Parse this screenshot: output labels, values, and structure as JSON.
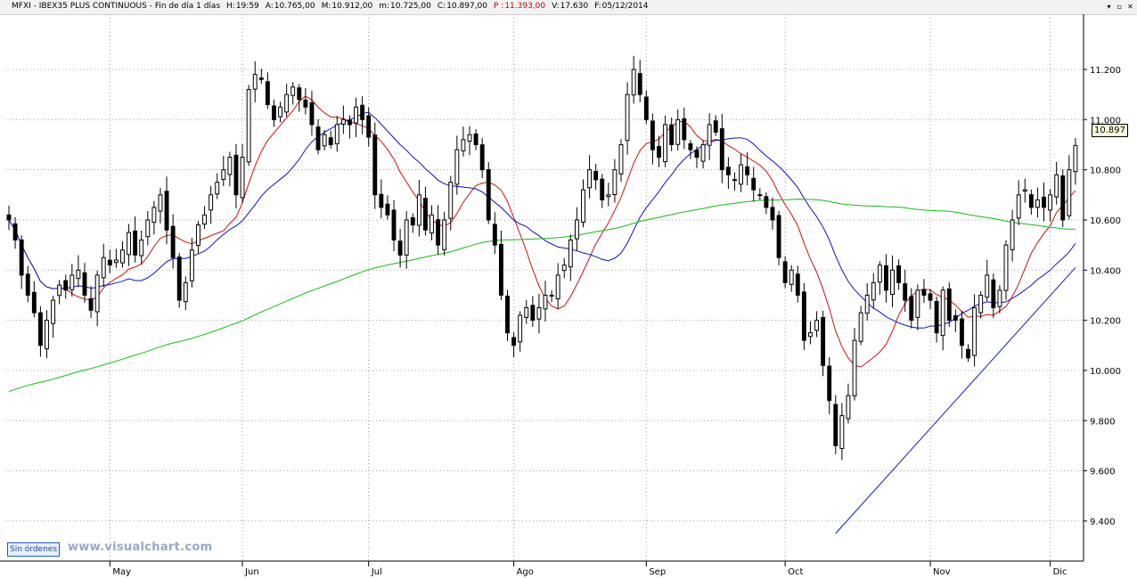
{
  "header": {
    "symbol": "MFXI",
    "name": "IBEX35 PLUS CONTINUOUS",
    "timeframe": "Fin de día 1 días",
    "fields": [
      {
        "label": "H:",
        "value": "19:59",
        "color": "#000000"
      },
      {
        "label": "A:",
        "value": "10.765,00",
        "color": "#000000"
      },
      {
        "label": "M:",
        "value": "10.912,00",
        "color": "#000000"
      },
      {
        "label": "m:",
        "value": "10.725,00",
        "color": "#000000"
      },
      {
        "label": "C:",
        "value": "10.897,00",
        "color": "#000000"
      },
      {
        "label": "P :",
        "value": "11.393,00",
        "color": "#d00000"
      },
      {
        "label": "V:",
        "value": "17.630",
        "color": "#000000"
      },
      {
        "label": "F:",
        "value": "05/12/2014",
        "color": "#000000"
      }
    ],
    "window_buttons": [
      "▾",
      "▫",
      "✕"
    ]
  },
  "status": {
    "orders_label": "Sin órdenes",
    "watermark": "www.visualchart.com",
    "last_price": "10.897"
  },
  "colors": {
    "ma_fast": "#d01010",
    "ma_mid": "#1010c0",
    "ma_slow": "#10c010",
    "trendline": "#1020b0",
    "candle": "#000000",
    "grid": "#a0a0a0"
  },
  "chart_data": {
    "type": "candlestick",
    "y_axis": {
      "ticks": [
        "9.400",
        "9.600",
        "9.800",
        "10.000",
        "10.200",
        "10.400",
        "10.600",
        "10.800",
        "11.000",
        "11.200"
      ],
      "tick_values": [
        9400,
        9600,
        9800,
        10000,
        10200,
        10400,
        10600,
        10800,
        11000,
        11200
      ],
      "range": [
        9240,
        11420
      ],
      "side": "right"
    },
    "x_axis": {
      "months": [
        {
          "label": "May",
          "bar": 16
        },
        {
          "label": "Jun",
          "bar": 37
        },
        {
          "label": "Jul",
          "bar": 57
        },
        {
          "label": "Ago",
          "bar": 80
        },
        {
          "label": "Sep",
          "bar": 101
        },
        {
          "label": "Oct",
          "bar": 123
        },
        {
          "label": "Nov",
          "bar": 146
        },
        {
          "label": "Dic",
          "bar": 165
        }
      ]
    },
    "grid": true,
    "close": [
      10600,
      10520,
      10380,
      10300,
      10230,
      10100,
      10200,
      10280,
      10340,
      10320,
      10380,
      10400,
      10300,
      10240,
      10380,
      10450,
      10420,
      10440,
      10480,
      10550,
      10460,
      10520,
      10600,
      10650,
      10700,
      10560,
      10450,
      10280,
      10350,
      10480,
      10580,
      10620,
      10700,
      10750,
      10800,
      10850,
      10700,
      10850,
      11120,
      11180,
      11160,
      11060,
      11000,
      11050,
      11100,
      11130,
      11080,
      11050,
      10980,
      10880,
      10940,
      10900,
      10980,
      11000,
      10980,
      11050,
      11000,
      10930,
      10700,
      10650,
      10620,
      10520,
      10460,
      10600,
      10580,
      10700,
      10560,
      10620,
      10500,
      10600,
      10750,
      10880,
      10920,
      10940,
      10900,
      10800,
      10600,
      10500,
      10300,
      10150,
      10100,
      10220,
      10250,
      10200,
      10250,
      10300,
      10300,
      10380,
      10420,
      10520,
      10600,
      10720,
      10800,
      10760,
      10680,
      10700,
      10800,
      10900,
      11100,
      11200,
      11100,
      11000,
      10880,
      10850,
      10980,
      10900,
      11000,
      10920,
      10880,
      10850,
      10900,
      10980,
      10950,
      10800,
      10780,
      10760,
      10820,
      10780,
      10720,
      10700,
      10650,
      10600,
      10450,
      10350,
      10400,
      10300,
      10120,
      10150,
      10200,
      10020,
      9880,
      9700,
      9820,
      9900,
      10120,
      10230,
      10300,
      10350,
      10420,
      10320,
      10400,
      10350,
      10280,
      10200,
      10320,
      10300,
      10280,
      10150,
      10320,
      10200,
      10200,
      10100,
      10050,
      10250,
      10300,
      10380,
      10250,
      10320,
      10500,
      10600,
      10700,
      10720,
      10650,
      10680,
      10650,
      10700,
      10780,
      10600,
      10800,
      10897
    ]
  }
}
